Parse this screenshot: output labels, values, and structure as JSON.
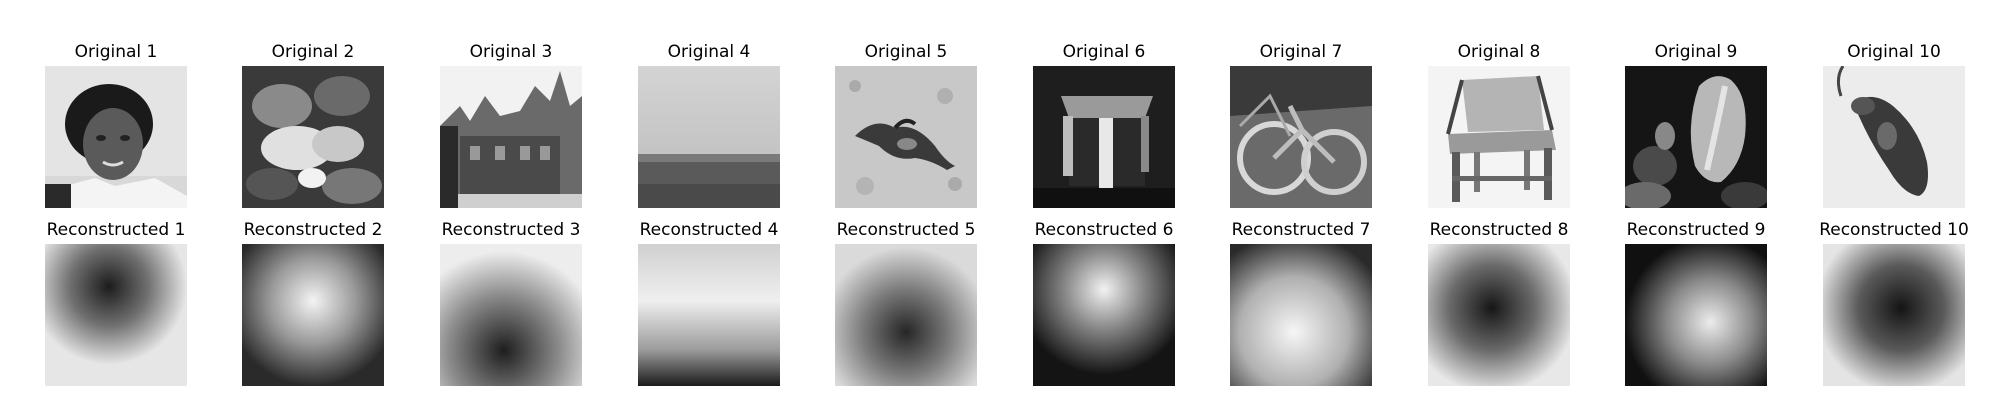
{
  "figure": {
    "rows": [
      {
        "name": "original",
        "panels": [
          {
            "title": "Original 1",
            "subject": "portrait-photo"
          },
          {
            "title": "Original 2",
            "subject": "flowers-photo"
          },
          {
            "title": "Original 3",
            "subject": "castle-photo"
          },
          {
            "title": "Original 4",
            "subject": "sea-horizon-photo"
          },
          {
            "title": "Original 5",
            "subject": "lizard-photo"
          },
          {
            "title": "Original 6",
            "subject": "table-photo"
          },
          {
            "title": "Original 7",
            "subject": "bicycle-photo"
          },
          {
            "title": "Original 8",
            "subject": "chair-photo"
          },
          {
            "title": "Original 9",
            "subject": "tulip-photo"
          },
          {
            "title": "Original 10",
            "subject": "mouse-photo"
          }
        ]
      },
      {
        "name": "reconstructed",
        "panels": [
          {
            "title": "Reconstructed 1",
            "subject": "dark-blob-reconstruction"
          },
          {
            "title": "Reconstructed 2",
            "subject": "bright-blob-reconstruction"
          },
          {
            "title": "Reconstructed 3",
            "subject": "dark-bottom-reconstruction"
          },
          {
            "title": "Reconstructed 4",
            "subject": "bright-top-reconstruction"
          },
          {
            "title": "Reconstructed 5",
            "subject": "dark-center-reconstruction"
          },
          {
            "title": "Reconstructed 6",
            "subject": "bright-top-blob-reconstruction"
          },
          {
            "title": "Reconstructed 7",
            "subject": "bright-center-reconstruction"
          },
          {
            "title": "Reconstructed 8",
            "subject": "dark-center-blob-reconstruction"
          },
          {
            "title": "Reconstructed 9",
            "subject": "bright-right-reconstruction"
          },
          {
            "title": "Reconstructed 10",
            "subject": "dark-blob-reconstruction"
          }
        ]
      }
    ],
    "colors": {
      "background": "#ffffff",
      "pixel_dark": "#111111",
      "pixel_light": "#f0f0f0"
    }
  }
}
